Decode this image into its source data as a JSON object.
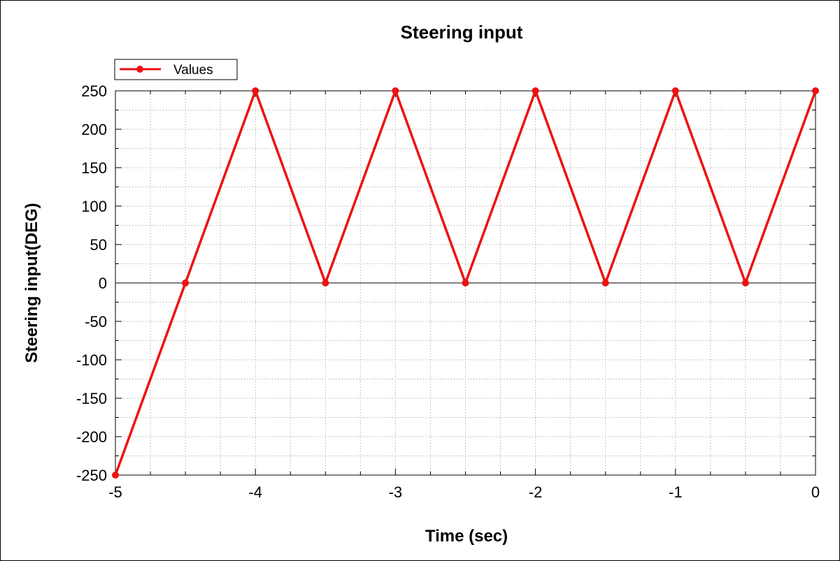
{
  "chart_data": {
    "type": "line",
    "title": "Steering input",
    "xlabel": "Time (sec)",
    "ylabel": "Steering input(DEG)",
    "xlim": [
      -5,
      0
    ],
    "ylim": [
      -250,
      250
    ],
    "x_ticks": [
      "-5",
      "-4",
      "-3",
      "-2",
      "-1",
      "0"
    ],
    "y_ticks": [
      "250",
      "200",
      "150",
      "100",
      "50",
      "0",
      "-50",
      "-100",
      "-150",
      "-200",
      "-250"
    ],
    "grid": true,
    "legend_position": "top-left",
    "series": [
      {
        "name": "Values",
        "color": "#ee1111",
        "marker": "circle",
        "x": [
          -5,
          -4.5,
          -4,
          -3.5,
          -3,
          -2.5,
          -2,
          -1.5,
          -1,
          -0.5,
          0
        ],
        "y": [
          -250,
          0,
          250,
          0,
          250,
          0,
          250,
          0,
          250,
          0,
          250
        ]
      }
    ]
  }
}
